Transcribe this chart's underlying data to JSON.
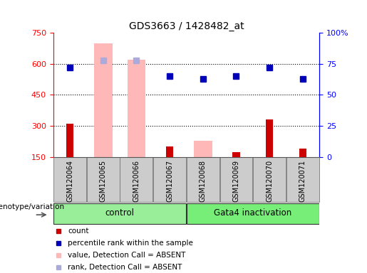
{
  "title": "GDS3663 / 1428482_at",
  "samples": [
    "GSM120064",
    "GSM120065",
    "GSM120066",
    "GSM120067",
    "GSM120068",
    "GSM120069",
    "GSM120070",
    "GSM120071"
  ],
  "count": [
    310,
    null,
    null,
    200,
    null,
    175,
    330,
    190
  ],
  "percentile_rank": [
    72,
    null,
    null,
    65,
    63,
    65,
    72,
    63
  ],
  "value_absent": [
    null,
    700,
    620,
    null,
    230,
    null,
    null,
    null
  ],
  "rank_absent": [
    null,
    78,
    78,
    null,
    null,
    null,
    null,
    null
  ],
  "left_ylim": [
    150,
    750
  ],
  "left_yticks": [
    150,
    300,
    450,
    600,
    750
  ],
  "right_ylim": [
    0,
    100
  ],
  "right_yticks": [
    0,
    25,
    50,
    75,
    100
  ],
  "right_yticklabels": [
    "0",
    "25",
    "50",
    "75",
    "100%"
  ],
  "hlines": [
    300,
    450,
    600
  ],
  "count_color": "#cc0000",
  "absent_value_color": "#ffb8b8",
  "absent_rank_color": "#aaaadd",
  "percentile_color": "#0000bb",
  "group_color_control": "#aaffaa",
  "group_color_gata4": "#66ee66",
  "legend_items": [
    {
      "label": "count",
      "color": "#cc0000"
    },
    {
      "label": "percentile rank within the sample",
      "color": "#0000bb"
    },
    {
      "label": "value, Detection Call = ABSENT",
      "color": "#ffb8b8"
    },
    {
      "label": "rank, Detection Call = ABSENT",
      "color": "#aaaadd"
    }
  ]
}
